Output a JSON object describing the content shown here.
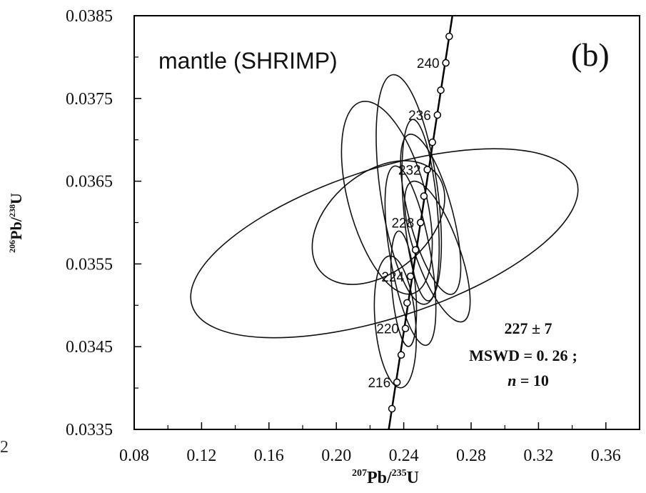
{
  "chart_data": {
    "type": "scatter",
    "panel_label": "(b)",
    "title": "mantle (SHRIMP)",
    "xlabel": {
      "sup1": "207",
      "base1": "Pb/",
      "sup2": "235",
      "base2": "U"
    },
    "ylabel": {
      "sup1": "206",
      "base1": "Pb/",
      "sup2": "238",
      "base2": "U"
    },
    "xlim": [
      0.08,
      0.38
    ],
    "ylim": [
      0.0335,
      0.0385
    ],
    "x_ticks": [
      "0.08",
      "0.12",
      "0.16",
      "0.20",
      "0.24",
      "0.28",
      "0.32",
      "0.36"
    ],
    "y_ticks": [
      "0.0335",
      "0.0345",
      "0.0355",
      "0.0365",
      "0.0375",
      "0.0385"
    ],
    "stray_label": "2",
    "concordia": {
      "points": [
        {
          "x": 0.233,
          "y": 0.03375
        },
        {
          "x": 0.236,
          "y": 0.03407,
          "label": "216"
        },
        {
          "x": 0.2385,
          "y": 0.0344
        },
        {
          "x": 0.241,
          "y": 0.03472,
          "label": "220"
        },
        {
          "x": 0.242,
          "y": 0.03503
        },
        {
          "x": 0.244,
          "y": 0.03535,
          "label": "224"
        },
        {
          "x": 0.247,
          "y": 0.03567
        },
        {
          "x": 0.25,
          "y": 0.036,
          "label": "228"
        },
        {
          "x": 0.252,
          "y": 0.03632
        },
        {
          "x": 0.254,
          "y": 0.03664,
          "label": "232"
        },
        {
          "x": 0.257,
          "y": 0.03697
        },
        {
          "x": 0.26,
          "y": 0.0373,
          "label": "236"
        },
        {
          "x": 0.262,
          "y": 0.0376
        },
        {
          "x": 0.265,
          "y": 0.03793,
          "label": "240"
        },
        {
          "x": 0.267,
          "y": 0.03825
        }
      ]
    },
    "ellipses": [
      {
        "cx": 0.2285,
        "cy": 0.03575,
        "rx_data": 0.12,
        "ry_data": 0.0009,
        "angle_deg": -18
      },
      {
        "cx": 0.225,
        "cy": 0.036,
        "rx_data": 0.045,
        "ry_data": 0.0006,
        "angle_deg": -40
      },
      {
        "cx": 0.23,
        "cy": 0.0363,
        "rx_data": 0.023,
        "ry_data": 0.0012,
        "angle_deg": -15
      },
      {
        "cx": 0.243,
        "cy": 0.0364,
        "rx_data": 0.017,
        "ry_data": 0.0014,
        "angle_deg": -8
      },
      {
        "cx": 0.25,
        "cy": 0.03615,
        "rx_data": 0.01,
        "ry_data": 0.0011,
        "angle_deg": -5
      },
      {
        "cx": 0.256,
        "cy": 0.0361,
        "rx_data": 0.013,
        "ry_data": 0.001,
        "angle_deg": -15
      },
      {
        "cx": 0.244,
        "cy": 0.0356,
        "rx_data": 0.012,
        "ry_data": 0.0011,
        "angle_deg": -10
      },
      {
        "cx": 0.26,
        "cy": 0.03565,
        "rx_data": 0.013,
        "ry_data": 0.0009,
        "angle_deg": -20
      },
      {
        "cx": 0.235,
        "cy": 0.0348,
        "rx_data": 0.012,
        "ry_data": 0.0008,
        "angle_deg": -5
      },
      {
        "cx": 0.24,
        "cy": 0.0352,
        "rx_data": 0.007,
        "ry_data": 0.0007,
        "angle_deg": -5
      }
    ],
    "result": {
      "age": "227 ± 7",
      "mswd": "MSWD = 0. 26",
      "mswd_suffix": ";",
      "n_var": "n",
      "n_eq": " = 10"
    }
  }
}
